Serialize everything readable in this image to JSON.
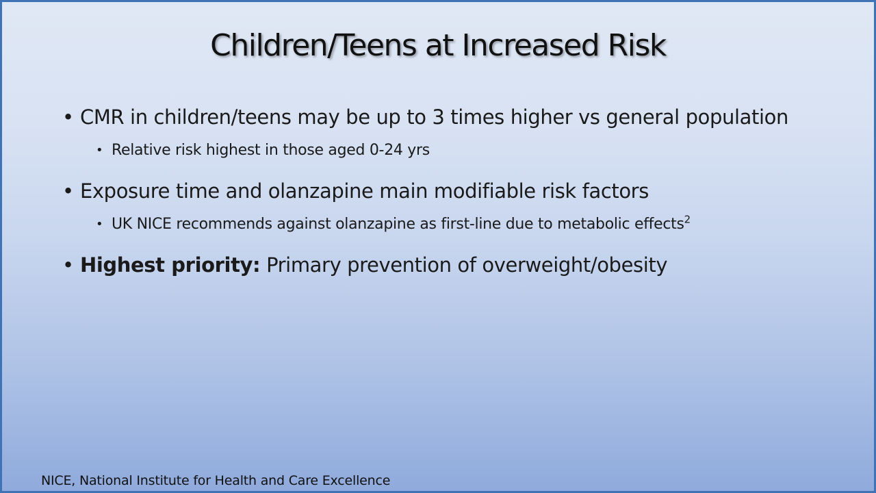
{
  "slide": {
    "title": "Children/Teens at Increased Risk",
    "bullets": [
      {
        "text": "CMR in children/teens may be up to 3 times higher vs general population",
        "sub": "Relative risk highest in those aged 0-24 yrs"
      },
      {
        "text": "Exposure time and olanzapine main modifiable risk factors",
        "sub": "UK NICE recommends against olanzapine as first-line due to metabolic effects",
        "sub_superscript": "2"
      },
      {
        "bold_prefix": "Highest priority:",
        "text": "Primary prevention of overweight/obesity"
      }
    ],
    "footer": "NICE, National Institute for Health and Care Excellence"
  },
  "colors": {
    "border": "#3f73b5",
    "gradient_top": "#e0e8f5",
    "gradient_bottom": "#8faadc"
  }
}
